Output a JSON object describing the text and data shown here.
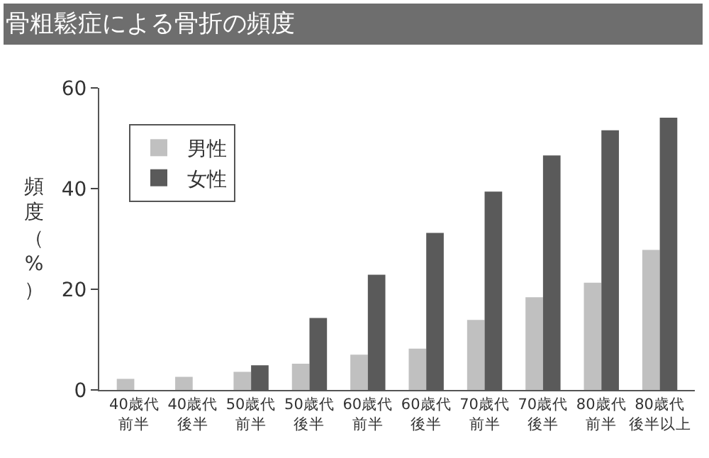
{
  "chart_data": {
    "type": "bar",
    "title": "骨粗鬆症による骨折の頻度",
    "ylabel": "頻度（%）",
    "categories": [
      "40歳代前半",
      "40歳代後半",
      "50歳代前半",
      "50歳代後半",
      "60歳代前半",
      "60歳代後半",
      "70歳代前半",
      "70歳代後半",
      "80歳代前半",
      "80歳代後半以上"
    ],
    "series": [
      {
        "name": "男性",
        "color": "#c0c0c0",
        "values": [
          2.2,
          2.6,
          3.6,
          5.2,
          7.0,
          8.2,
          13.9,
          18.4,
          21.3,
          27.8
        ]
      },
      {
        "name": "女性",
        "color": "#5a5a5a",
        "values": [
          null,
          null,
          4.9,
          14.3,
          22.9,
          31.2,
          39.4,
          46.6,
          51.6,
          54.1
        ]
      }
    ],
    "ylim": [
      0,
      60
    ],
    "yticks": [
      0,
      20,
      40,
      60
    ],
    "legend": "top left"
  }
}
